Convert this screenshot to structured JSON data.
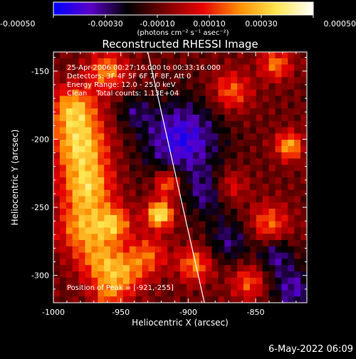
{
  "chart_data": {
    "type": "heatmap",
    "title": "Reconstructed RHESSI Image",
    "colorbar": {
      "min": -0.0005,
      "max": 0.0005,
      "tick_values": [
        -0.0005,
        -0.0003,
        -0.0001,
        0.0001,
        0.0003,
        0.0005
      ],
      "tick_labels": [
        "-0.00050",
        "-0.00030",
        "-0.00010",
        "0.00010",
        "0.00030",
        "0.00050"
      ],
      "unit_label": "(photons cm⁻² s⁻¹ asec⁻²)",
      "colors": [
        "#0000ff",
        "#5a00c8",
        "#000000",
        "#780000",
        "#e60000",
        "#ff8c00",
        "#ffe650",
        "#ffffff"
      ]
    },
    "x_axis": {
      "label": "Heliocentric X (arcsec)",
      "range": [
        -1000,
        -812
      ],
      "ticks": [
        -1000,
        -950,
        -900,
        -850
      ],
      "tick_labels": [
        "-1000",
        "-950",
        "-900",
        "-850"
      ]
    },
    "y_axis": {
      "label": "Heliocentric Y (arcsec)",
      "range": [
        -320,
        -136
      ],
      "ticks": [
        -150,
        -200,
        -250,
        -300
      ],
      "tick_labels": [
        "-150",
        "-200",
        "-250",
        "-300"
      ]
    },
    "annotations": [
      "25-Apr-2006 00:27:16.000 to 00:33:16.000",
      "Detectors: 3F 4F 5F 6F 7F 8F, Att 0",
      "Energy Range: 12.0 - 25.0 keV",
      "Clean    Total counts: 1.13E+04"
    ],
    "peak": {
      "label": "Position of Peak = [-921,-255]",
      "x": -921,
      "y": -255
    },
    "limb_line": {
      "x_top": -930,
      "x_bottom": -888
    },
    "image_grid": {
      "cols": 40,
      "rows": 40
    },
    "sources": [
      {
        "x": -985,
        "y": -178,
        "sigma": 12,
        "amp": 0.00036
      },
      {
        "x": -980,
        "y": -205,
        "sigma": 14,
        "amp": 0.0004
      },
      {
        "x": -975,
        "y": -235,
        "sigma": 13,
        "amp": 0.00038
      },
      {
        "x": -978,
        "y": -265,
        "sigma": 13,
        "amp": 0.00032
      },
      {
        "x": -965,
        "y": -290,
        "sigma": 12,
        "amp": 0.00028
      },
      {
        "x": -948,
        "y": -300,
        "sigma": 11,
        "amp": 0.00026
      },
      {
        "x": -930,
        "y": -285,
        "sigma": 10,
        "amp": 0.00024
      },
      {
        "x": -960,
        "y": -150,
        "sigma": 10,
        "amp": 0.0003
      },
      {
        "x": -955,
        "y": -262,
        "sigma": 9,
        "amp": 0.00032
      },
      {
        "x": -921,
        "y": -255,
        "sigma": 7,
        "amp": 0.0005
      },
      {
        "x": -915,
        "y": -232,
        "sigma": 7,
        "amp": 0.00033
      },
      {
        "x": -868,
        "y": -165,
        "sigma": 10,
        "amp": 0.00026
      },
      {
        "x": -835,
        "y": -145,
        "sigma": 8,
        "amp": 0.00028
      },
      {
        "x": -825,
        "y": -205,
        "sigma": 7,
        "amp": 0.00036
      },
      {
        "x": -870,
        "y": -235,
        "sigma": 9,
        "amp": 0.00022
      },
      {
        "x": -840,
        "y": -262,
        "sigma": 10,
        "amp": 0.00026
      },
      {
        "x": -895,
        "y": -292,
        "sigma": 9,
        "amp": 0.0003
      },
      {
        "x": -855,
        "y": -305,
        "sigma": 9,
        "amp": 0.00024
      },
      {
        "x": -960,
        "y": -315,
        "sigma": 8,
        "amp": 0.0002
      }
    ],
    "negative_regions": [
      {
        "x": -905,
        "y": -200,
        "sigma": 20,
        "amp": -0.00034
      },
      {
        "x": -885,
        "y": -240,
        "sigma": 12,
        "amp": -0.00022
      },
      {
        "x": -870,
        "y": -275,
        "sigma": 12,
        "amp": -0.0002
      },
      {
        "x": -835,
        "y": -285,
        "sigma": 9,
        "amp": -0.00022
      },
      {
        "x": -822,
        "y": -310,
        "sigma": 12,
        "amp": -0.00025
      },
      {
        "x": -940,
        "y": -180,
        "sigma": 9,
        "amp": -0.00015
      }
    ]
  },
  "timestamp": "6-May-2022 06:09"
}
